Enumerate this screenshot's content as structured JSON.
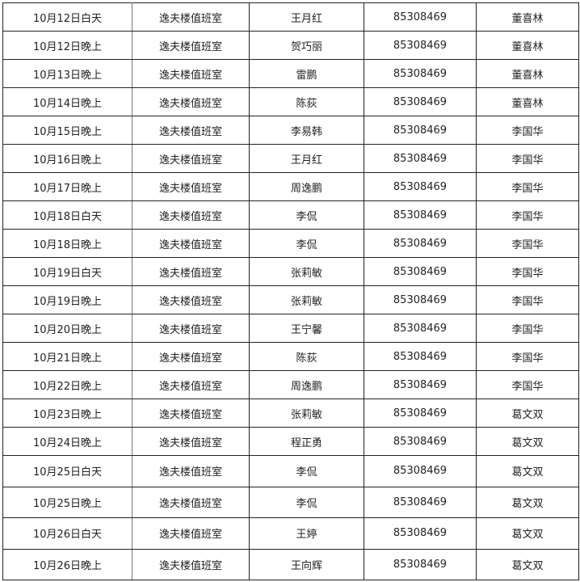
{
  "rows": [
    {
      "date": "10月12日白天",
      "place": "逸夫楼值班室",
      "person": "王月红",
      "phone": "85308469",
      "leader": "董喜林"
    },
    {
      "date": "10月12日晚上",
      "place": "逸夫楼值班室",
      "person": "贺巧丽",
      "phone": "85308469",
      "leader": "董喜林"
    },
    {
      "date": "10月13日晚上",
      "place": "逸夫楼值班室",
      "person": "雷鹏",
      "phone": "85308469",
      "leader": "董喜林"
    },
    {
      "date": "10月14日晚上",
      "place": "逸夫楼值班室",
      "person": "陈荻",
      "phone": "85308469",
      "leader": "董喜林"
    },
    {
      "date": "10月15日晚上",
      "place": "逸夫楼值班室",
      "person": "李易韩",
      "phone": "85308469",
      "leader": "李国华"
    },
    {
      "date": "10月16日晚上",
      "place": "逸夫楼值班室",
      "person": "王月红",
      "phone": "85308469",
      "leader": "李国华"
    },
    {
      "date": "10月17日晚上",
      "place": "逸夫楼值班室",
      "person": "周逸鹏",
      "phone": "85308469",
      "leader": "李国华"
    },
    {
      "date": "10月18日白天",
      "place": "逸夫楼值班室",
      "person": "李侃",
      "phone": "85308469",
      "leader": "李国华"
    },
    {
      "date": "10月18日晚上",
      "place": "逸夫楼值班室",
      "person": "李侃",
      "phone": "85308469",
      "leader": "李国华"
    },
    {
      "date": "10月19日白天",
      "place": "逸夫楼值班室",
      "person": "张莉敏",
      "phone": "85308469",
      "leader": "李国华"
    },
    {
      "date": "10月19日晚上",
      "place": "逸夫楼值班室",
      "person": "张莉敏",
      "phone": "85308469",
      "leader": "李国华"
    },
    {
      "date": "10月20日晚上",
      "place": "逸夫楼值班室",
      "person": "王宁馨",
      "phone": "85308469",
      "leader": "李国华"
    },
    {
      "date": "10月21日晚上",
      "place": "逸夫楼值班室",
      "person": "陈荻",
      "phone": "85308469",
      "leader": "李国华"
    },
    {
      "date": "10月22日晚上",
      "place": "逸夫楼值班室",
      "person": "周逸鹏",
      "phone": "85308469",
      "leader": "李国华"
    },
    {
      "date": "10月23日晚上",
      "place": "逸夫楼值班室",
      "person": "张莉敏",
      "phone": "85308469",
      "leader": "葛文双"
    },
    {
      "date": "10月24日晚上",
      "place": "逸夫楼值班室",
      "person": "程正勇",
      "phone": "85308469",
      "leader": "葛文双"
    },
    {
      "date": "10月25日白天",
      "place": "逸夫楼值班室",
      "person": "李侃",
      "phone": "85308469",
      "leader": "葛文双"
    },
    {
      "date": "10月25日晚上",
      "place": "逸夫楼值班室",
      "person": "李侃",
      "phone": "85308469",
      "leader": "葛文双"
    },
    {
      "date": "10月26日白天",
      "place": "逸夫楼值班室",
      "person": "王婷",
      "phone": "85308469",
      "leader": "葛文双"
    },
    {
      "date": "10月26日晚上",
      "place": "逸夫楼值班室",
      "person": "王向辉",
      "phone": "85308469",
      "leader": "葛文双"
    }
  ]
}
